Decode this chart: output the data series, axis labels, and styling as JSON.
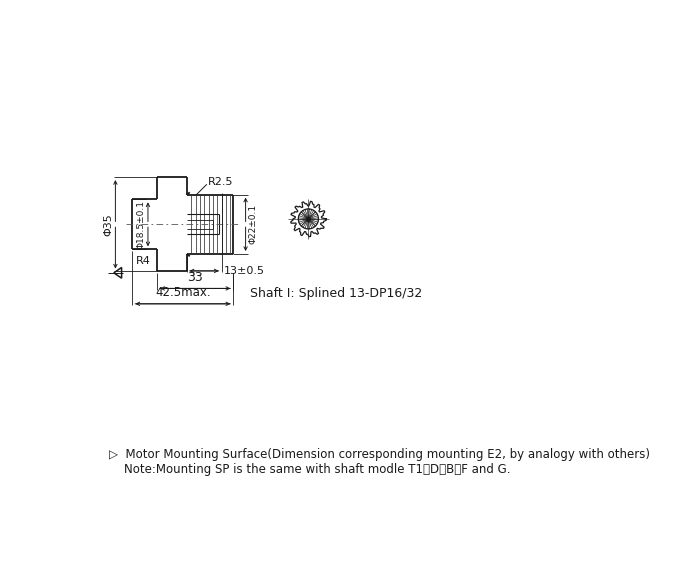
{
  "bg_color": "#ffffff",
  "line_color": "#1a1a1a",
  "note_line1": "▷  Motor Mounting Surface(Dimension corresponding mounting E2, by analogy with others)",
  "note_line2": "    Note:Mounting SP is the same with shaft modle T1、D、B、F and G.",
  "dim_phi35": "Φ35",
  "dim_phi185": "Φ18.5±0.1",
  "dim_phi22": "Φ22±0.1",
  "dim_R25": "R2.5",
  "dim_R4": "R4",
  "dim_13": "13±0.5",
  "dim_33": "33",
  "dim_425": "42.5max.",
  "shaft_label": "Shaft I: Splined 13-DP16/32"
}
